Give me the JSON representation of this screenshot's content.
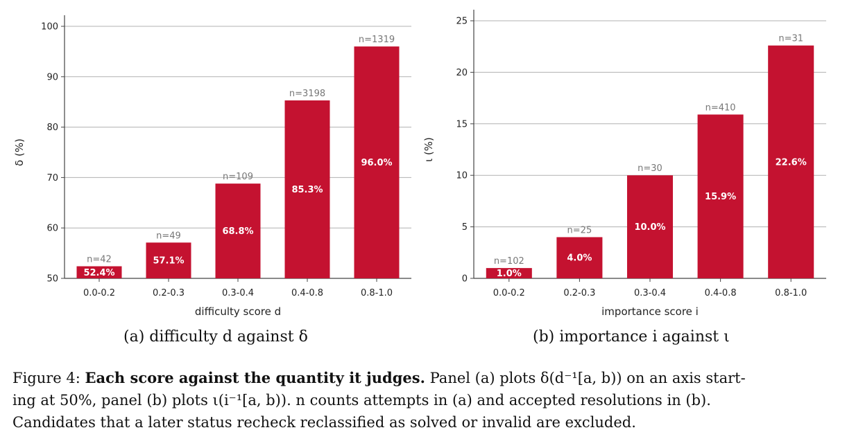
{
  "colors": {
    "bar": "#c41230",
    "grid": "#b0b0b0",
    "axis": "#444444",
    "n_label": "#777777"
  },
  "chart_data": [
    {
      "type": "bar",
      "categories": [
        "0.0-0.2",
        "0.2-0.3",
        "0.3-0.4",
        "0.4-0.8",
        "0.8-1.0"
      ],
      "values": [
        52.4,
        57.1,
        68.8,
        85.3,
        96.0
      ],
      "value_labels": [
        "52.4%",
        "57.1%",
        "68.8%",
        "85.3%",
        "96.0%"
      ],
      "n_labels": [
        "n=42",
        "n=49",
        "n=109",
        "n=3198",
        "n=1319"
      ],
      "ylim": [
        50,
        100
      ],
      "yticks": [
        50,
        60,
        70,
        80,
        90,
        100
      ],
      "xlabel": "difficulty score d",
      "ylabel": "δ (%)",
      "grid": "horizontal",
      "caption": "(a) difficulty d against δ"
    },
    {
      "type": "bar",
      "categories": [
        "0.0-0.2",
        "0.2-0.3",
        "0.3-0.4",
        "0.4-0.8",
        "0.8-1.0"
      ],
      "values": [
        1.0,
        4.0,
        10.0,
        15.9,
        22.6
      ],
      "value_labels": [
        "1.0%",
        "4.0%",
        "10.0%",
        "15.9%",
        "22.6%"
      ],
      "n_labels": [
        "n=102",
        "n=25",
        "n=30",
        "n=410",
        "n=31"
      ],
      "ylim": [
        0,
        25
      ],
      "yticks": [
        0,
        5,
        10,
        15,
        20,
        25
      ],
      "xlabel": "importance score i",
      "ylabel": "ι (%)",
      "grid": "horizontal",
      "caption": "(b) importance i against ι"
    }
  ],
  "figure_caption": {
    "label": "Figure 4:",
    "bold": "Each score against the quantity it judges.",
    "line1_rest": "Panel (a) plots δ(d⁻¹[a, b)) on an axis start-",
    "line2": "ing at 50%, panel (b) plots ι(i⁻¹[a, b)).  n counts attempts in (a) and accepted resolutions in (b).",
    "line3": "Candidates that a later status recheck reclassified as solved or invalid are excluded."
  }
}
